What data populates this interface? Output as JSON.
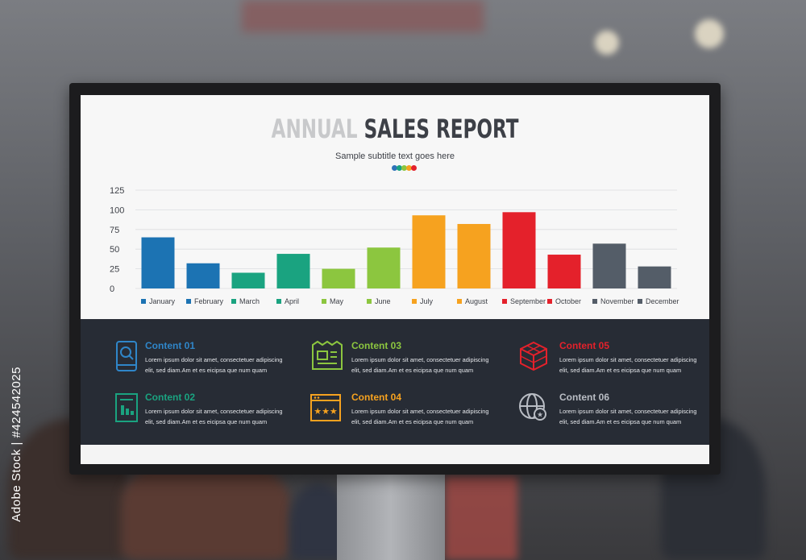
{
  "report": {
    "title_part1": "ANNUAL",
    "title_part2": "SALES REPORT",
    "subtitle": "Sample subtitle text goes here"
  },
  "colors": {
    "blue": "#1c73b3",
    "green": "#1aa380",
    "lime": "#8cc63f",
    "orange": "#f6a21f",
    "red": "#e4212b",
    "gray": "#545d68",
    "panel": "#272c35",
    "dots": [
      "#2f73b8",
      "#1aa380",
      "#8cc63f",
      "#f6a21f",
      "#e4212b"
    ]
  },
  "chart_data": {
    "type": "bar",
    "categories": [
      "January",
      "February",
      "March",
      "April",
      "May",
      "June",
      "July",
      "August",
      "September",
      "October",
      "November",
      "December"
    ],
    "values": [
      65,
      32,
      20,
      44,
      25,
      52,
      93,
      82,
      97,
      43,
      57,
      28
    ],
    "bar_colors": [
      "#1c73b3",
      "#1c73b3",
      "#1aa380",
      "#1aa380",
      "#8cc63f",
      "#8cc63f",
      "#f6a21f",
      "#f6a21f",
      "#e4212b",
      "#e4212b",
      "#545d68",
      "#545d68"
    ],
    "yticks": [
      0,
      25,
      50,
      75,
      100,
      125
    ],
    "ylim": [
      0,
      125
    ],
    "grid": true,
    "legend": "bottom",
    "title": "ANNUAL SALES REPORT",
    "xlabel": "",
    "ylabel": ""
  },
  "contents": [
    {
      "title": "Content 01",
      "color": "#2f86c9",
      "icon": "mobile-search-icon",
      "line1": "Lorem ipsum dolor sit amet, consectetuer adipiscing",
      "line2": "elit, sed diam.Am et es eicipsa que num quam"
    },
    {
      "title": "Content 02",
      "color": "#1aa380",
      "icon": "document-chart-icon",
      "line1": "Lorem ipsum dolor sit amet, consectetuer adipiscing",
      "line2": "elit, sed diam.Am et es eicipsa que num quam"
    },
    {
      "title": "Content 03",
      "color": "#8cc63f",
      "icon": "newspaper-icon",
      "line1": "Lorem ipsum dolor sit amet, consectetuer adipiscing",
      "line2": "elit, sed diam.Am et es eicipsa que num quam"
    },
    {
      "title": "Content 04",
      "color": "#f6a21f",
      "icon": "rating-window-icon",
      "line1": "Lorem ipsum dolor sit amet, consectetuer adipiscing",
      "line2": "elit, sed diam.Am et es eicipsa que num quam"
    },
    {
      "title": "Content 05",
      "color": "#e4212b",
      "icon": "cube-icon",
      "line1": "Lorem ipsum dolor sit amet, consectetuer adipiscing",
      "line2": "elit, sed diam.Am et es eicipsa que num quam"
    },
    {
      "title": "Content 06",
      "color": "#b9bdc4",
      "icon": "globe-star-icon",
      "line1": "Lorem ipsum dolor sit amet, consectetuer adipiscing",
      "line2": "elit, sed diam.Am et es eicipsa que num quam"
    }
  ],
  "watermark": "Adobe Stock | #424542025"
}
